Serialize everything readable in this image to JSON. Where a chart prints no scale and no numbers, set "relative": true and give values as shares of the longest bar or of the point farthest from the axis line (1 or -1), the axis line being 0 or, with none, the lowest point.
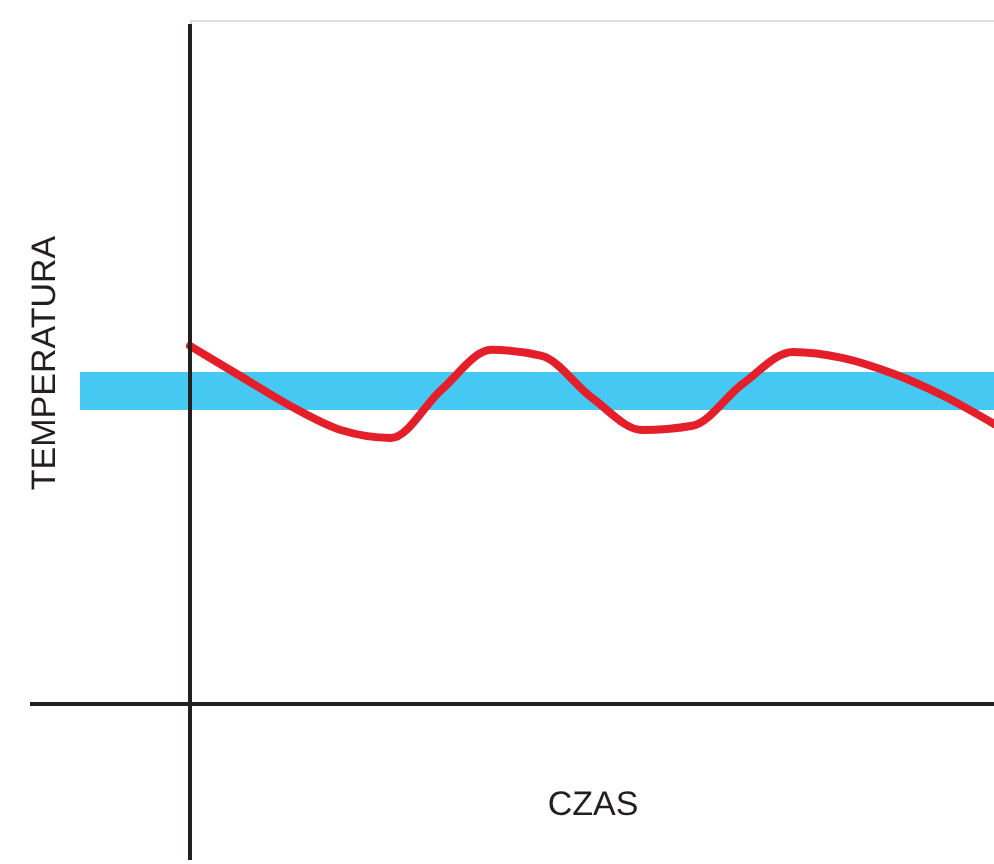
{
  "chart_data": {
    "type": "line",
    "relative": true,
    "xlabel": "CZAS",
    "ylabel": "TEMPERATURA",
    "categories": [
      null,
      null,
      null,
      null,
      null,
      null,
      null,
      null,
      null,
      null,
      null,
      null,
      null,
      null,
      null,
      null,
      null
    ],
    "series": [
      {
        "color": "#e41f2a",
        "values": [
          1,
          0.916,
          0.832,
          0.765,
          0.743,
          0.877,
          0.989,
          0.972,
          0.855,
          0.765,
          0.777,
          0.894,
          0.983,
          0.966,
          0.922,
          0.86,
          0.782
        ]
      }
    ],
    "bands": [
      {
        "axis": "y",
        "from": 0.821,
        "to": 0.927,
        "color": "#45c8f2"
      }
    ],
    "grid": false,
    "line_style": "solid",
    "marker": "none"
  }
}
